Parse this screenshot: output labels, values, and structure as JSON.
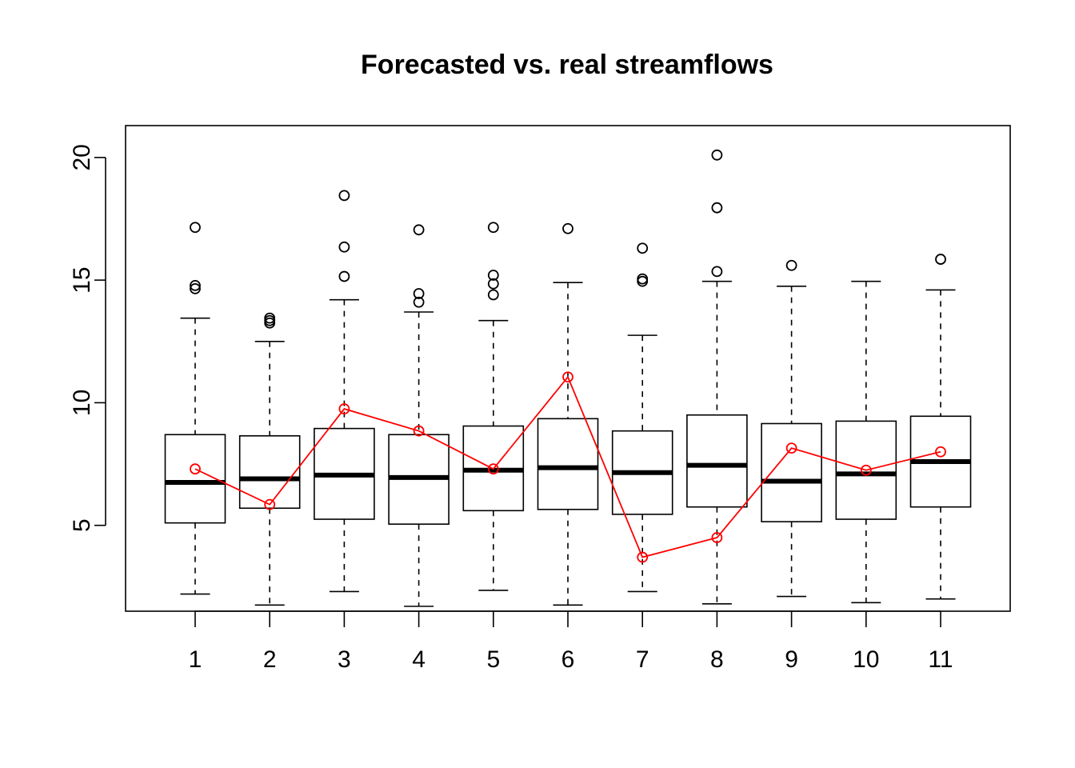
{
  "chart_data": {
    "type": "boxplot",
    "title": "Forecasted vs. real streamflows",
    "xlabel": "",
    "ylabel": "",
    "categories": [
      "1",
      "2",
      "3",
      "4",
      "5",
      "6",
      "7",
      "8",
      "9",
      "10",
      "11"
    ],
    "yticks": [
      "5",
      "10",
      "15",
      "20"
    ],
    "ylim": [
      1.5,
      21.3
    ],
    "grid": false,
    "boxes": [
      {
        "lower_whisker": 2.2,
        "q1": 5.1,
        "median": 6.75,
        "q3": 8.7,
        "upper_whisker": 13.45,
        "outliers": [
          14.65,
          14.78,
          17.15
        ]
      },
      {
        "lower_whisker": 1.75,
        "q1": 5.7,
        "median": 6.9,
        "q3": 8.65,
        "upper_whisker": 12.5,
        "outliers": [
          13.25,
          13.35,
          13.45
        ]
      },
      {
        "lower_whisker": 2.3,
        "q1": 5.25,
        "median": 7.05,
        "q3": 8.95,
        "upper_whisker": 14.2,
        "outliers": [
          15.15,
          16.35,
          18.45
        ]
      },
      {
        "lower_whisker": 1.7,
        "q1": 5.05,
        "median": 6.95,
        "q3": 8.7,
        "upper_whisker": 13.7,
        "outliers": [
          14.1,
          14.45,
          17.05
        ]
      },
      {
        "lower_whisker": 2.35,
        "q1": 5.6,
        "median": 7.25,
        "q3": 9.05,
        "upper_whisker": 13.35,
        "outliers": [
          14.4,
          14.85,
          15.2,
          17.15
        ]
      },
      {
        "lower_whisker": 1.75,
        "q1": 5.65,
        "median": 7.35,
        "q3": 9.35,
        "upper_whisker": 14.9,
        "outliers": [
          17.1
        ]
      },
      {
        "lower_whisker": 2.3,
        "q1": 5.45,
        "median": 7.15,
        "q3": 8.85,
        "upper_whisker": 12.75,
        "outliers": [
          14.95,
          15.05,
          16.3
        ]
      },
      {
        "lower_whisker": 1.8,
        "q1": 5.75,
        "median": 7.45,
        "q3": 9.5,
        "upper_whisker": 14.95,
        "outliers": [
          15.35,
          17.95,
          20.1
        ]
      },
      {
        "lower_whisker": 2.1,
        "q1": 5.15,
        "median": 6.8,
        "q3": 9.15,
        "upper_whisker": 14.75,
        "outliers": [
          15.6
        ]
      },
      {
        "lower_whisker": 1.85,
        "q1": 5.25,
        "median": 7.1,
        "q3": 9.25,
        "upper_whisker": 14.95,
        "outliers": []
      },
      {
        "lower_whisker": 2.0,
        "q1": 5.75,
        "median": 7.6,
        "q3": 9.45,
        "upper_whisker": 14.6,
        "outliers": [
          15.85
        ]
      }
    ],
    "line_series": {
      "values": [
        7.3,
        5.85,
        9.75,
        8.85,
        7.3,
        11.05,
        3.7,
        4.5,
        8.15,
        7.25,
        8.0
      ],
      "color": "#ff0000",
      "marker": "open-circle"
    },
    "box_color": "#000000"
  }
}
